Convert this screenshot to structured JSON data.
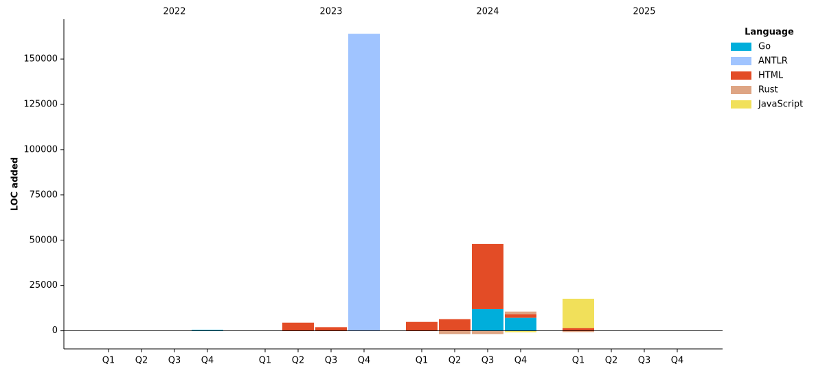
{
  "chart_data": {
    "type": "stacked_bar",
    "y_label": "LOC added",
    "legend_title": "Language",
    "legend": "upper right",
    "group_labels": [
      "2022",
      "2023",
      "2024",
      "2025"
    ],
    "categories": [
      "Q1",
      "Q2",
      "Q3",
      "Q4",
      "Q1",
      "Q2",
      "Q3",
      "Q4",
      "Q1",
      "Q2",
      "Q3",
      "Q4",
      "Q1",
      "Q2",
      "Q3",
      "Q4"
    ],
    "series": [
      {
        "name": "Go",
        "color": "#00aedb",
        "values": [
          0,
          0,
          0,
          500,
          0,
          0,
          0,
          0,
          0,
          0,
          12000,
          7200,
          0,
          0,
          0,
          0
        ]
      },
      {
        "name": "ANTLR",
        "color": "#a0c4ff",
        "values": [
          0,
          0,
          0,
          0,
          0,
          0,
          0,
          164000,
          0,
          0,
          0,
          0,
          0,
          0,
          0,
          0
        ]
      },
      {
        "name": "HTML",
        "color": "#e34c26",
        "values": [
          0,
          0,
          0,
          0,
          0,
          4500,
          2000,
          0,
          4900,
          6400,
          36000,
          2000,
          1500,
          0,
          0,
          0
        ]
      },
      {
        "name": "Rust",
        "color": "#dea584",
        "values": [
          0,
          0,
          0,
          0,
          0,
          0,
          0,
          0,
          0,
          -1800,
          -1800,
          1400,
          -700,
          0,
          0,
          0
        ]
      },
      {
        "name": "JavaScript",
        "color": "#f1e05a",
        "values": [
          0,
          0,
          0,
          0,
          0,
          0,
          0,
          0,
          0,
          0,
          0,
          -800,
          16200,
          0,
          0,
          0
        ]
      }
    ],
    "ylim": [
      -10000,
      172000
    ],
    "yticks": [
      0,
      25000,
      50000,
      75000,
      100000,
      125000,
      150000
    ]
  }
}
